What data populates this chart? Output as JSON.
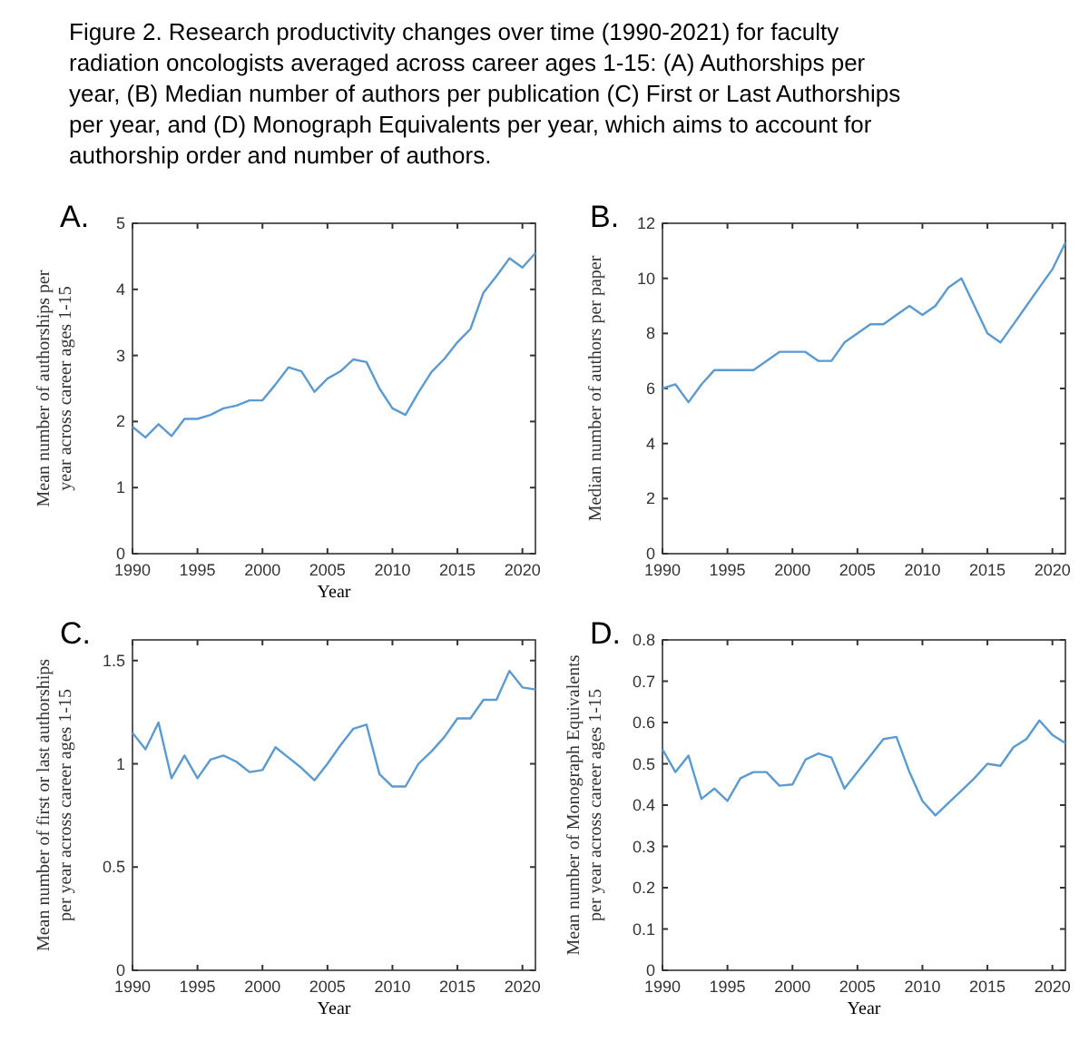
{
  "chart_data": [
    {
      "type": "line",
      "title": "A.",
      "annotations": [
        "Figure 2. Research productivity changes over time (1990-2021) for faculty radiation oncologists averaged across career ages 1-15: (A) Authorships per year, (B) Median number of authors per publication (C) First or Last Authorships per year, and (D) Monograph Equivalents per year, which aims to account for authorship order and number of authors."
      ],
      "xlabel": "Year",
      "ylabel": "Mean number of authorships per year across career ages 1-15",
      "x": [
        1990,
        1991,
        1992,
        1993,
        1994,
        1995,
        1996,
        1997,
        1998,
        1999,
        2000,
        2001,
        2002,
        2003,
        2004,
        2005,
        2006,
        2007,
        2008,
        2009,
        2010,
        2011,
        2012,
        2013,
        2014,
        2015,
        2016,
        2017,
        2018,
        2019,
        2020,
        2021
      ],
      "series": [
        {
          "color": "#5a9bd3",
          "values": [
            1.92,
            1.76,
            1.96,
            1.78,
            2.04,
            2.04,
            2.1,
            2.2,
            2.24,
            2.32,
            2.32,
            2.56,
            2.82,
            2.76,
            2.45,
            2.65,
            2.76,
            2.94,
            2.9,
            2.5,
            2.2,
            2.1,
            2.44,
            2.75,
            2.95,
            3.2,
            3.4,
            3.95,
            4.2,
            4.47,
            4.33,
            4.55
          ]
        }
      ],
      "xlim": [
        1990,
        2021
      ],
      "xticks": [
        1990,
        1995,
        2000,
        2005,
        2010,
        2015,
        2020
      ],
      "ylim": [
        0,
        5
      ],
      "yticks": [
        0,
        1,
        2,
        3,
        4,
        5
      ],
      "grid": false
    },
    {
      "type": "line",
      "title": "B.",
      "ylabel": "Median number of authors per paper",
      "x": [
        1990,
        1991,
        1992,
        1993,
        1994,
        1995,
        1996,
        1997,
        1998,
        1999,
        2000,
        2001,
        2002,
        2003,
        2004,
        2005,
        2006,
        2007,
        2008,
        2009,
        2010,
        2011,
        2012,
        2013,
        2014,
        2015,
        2016,
        2017,
        2018,
        2019,
        2020,
        2021
      ],
      "series": [
        {
          "color": "#5a9bd3",
          "values": [
            6.0,
            6.15,
            5.5,
            6.15,
            6.67,
            6.67,
            6.67,
            6.67,
            7.0,
            7.33,
            7.33,
            7.33,
            7.0,
            7.0,
            7.67,
            8.0,
            8.33,
            8.33,
            8.67,
            9.0,
            8.67,
            9.0,
            9.67,
            10.0,
            9.0,
            8.0,
            7.67,
            8.33,
            9.0,
            9.67,
            10.33,
            11.3
          ]
        }
      ],
      "xlim": [
        1990,
        2021
      ],
      "xticks": [
        1990,
        1995,
        2000,
        2005,
        2010,
        2015,
        2020
      ],
      "ylim": [
        0,
        12
      ],
      "yticks": [
        0,
        2,
        4,
        6,
        8,
        10,
        12
      ],
      "grid": false
    },
    {
      "type": "line",
      "title": "C.",
      "xlabel": "Year",
      "ylabel": "Mean number of first or last authorships per year across career ages 1-15",
      "x": [
        1990,
        1991,
        1992,
        1993,
        1994,
        1995,
        1996,
        1997,
        1998,
        1999,
        2000,
        2001,
        2002,
        2003,
        2004,
        2005,
        2006,
        2007,
        2008,
        2009,
        2010,
        2011,
        2012,
        2013,
        2014,
        2015,
        2016,
        2017,
        2018,
        2019,
        2020,
        2021
      ],
      "series": [
        {
          "color": "#5a9bd3",
          "values": [
            1.15,
            1.07,
            1.2,
            0.93,
            1.04,
            0.93,
            1.02,
            1.04,
            1.01,
            0.96,
            0.97,
            1.08,
            1.03,
            0.98,
            0.92,
            1.0,
            1.09,
            1.17,
            1.19,
            0.95,
            0.89,
            0.89,
            1.0,
            1.06,
            1.13,
            1.22,
            1.22,
            1.31,
            1.31,
            1.45,
            1.37,
            1.36
          ]
        }
      ],
      "xlim": [
        1990,
        2021
      ],
      "xticks": [
        1990,
        1995,
        2000,
        2005,
        2010,
        2015,
        2020
      ],
      "ylim": [
        0,
        1.6
      ],
      "yticks": [
        0,
        0.5,
        1,
        1.5
      ],
      "grid": false
    },
    {
      "type": "line",
      "title": "D.",
      "xlabel": "Year",
      "ylabel": "Mean number of Monograph Equivalents per year across career ages 1-15",
      "x": [
        1990,
        1991,
        1992,
        1993,
        1994,
        1995,
        1996,
        1997,
        1998,
        1999,
        2000,
        2001,
        2002,
        2003,
        2004,
        2005,
        2006,
        2007,
        2008,
        2009,
        2010,
        2011,
        2012,
        2013,
        2014,
        2015,
        2016,
        2017,
        2018,
        2019,
        2020,
        2021
      ],
      "series": [
        {
          "color": "#5a9bd3",
          "values": [
            0.535,
            0.48,
            0.52,
            0.415,
            0.44,
            0.41,
            0.465,
            0.48,
            0.48,
            0.447,
            0.45,
            0.51,
            0.525,
            0.515,
            0.44,
            0.48,
            0.52,
            0.56,
            0.565,
            0.48,
            0.41,
            0.375,
            0.405,
            0.435,
            0.465,
            0.5,
            0.495,
            0.54,
            0.56,
            0.605,
            0.57,
            0.55
          ]
        }
      ],
      "xlim": [
        1990,
        2021
      ],
      "xticks": [
        1990,
        1995,
        2000,
        2005,
        2010,
        2015,
        2020
      ],
      "ylim": [
        0,
        0.8
      ],
      "yticks": [
        0,
        0.1,
        0.2,
        0.3,
        0.4,
        0.5,
        0.6,
        0.7,
        0.8
      ],
      "grid": false
    }
  ]
}
